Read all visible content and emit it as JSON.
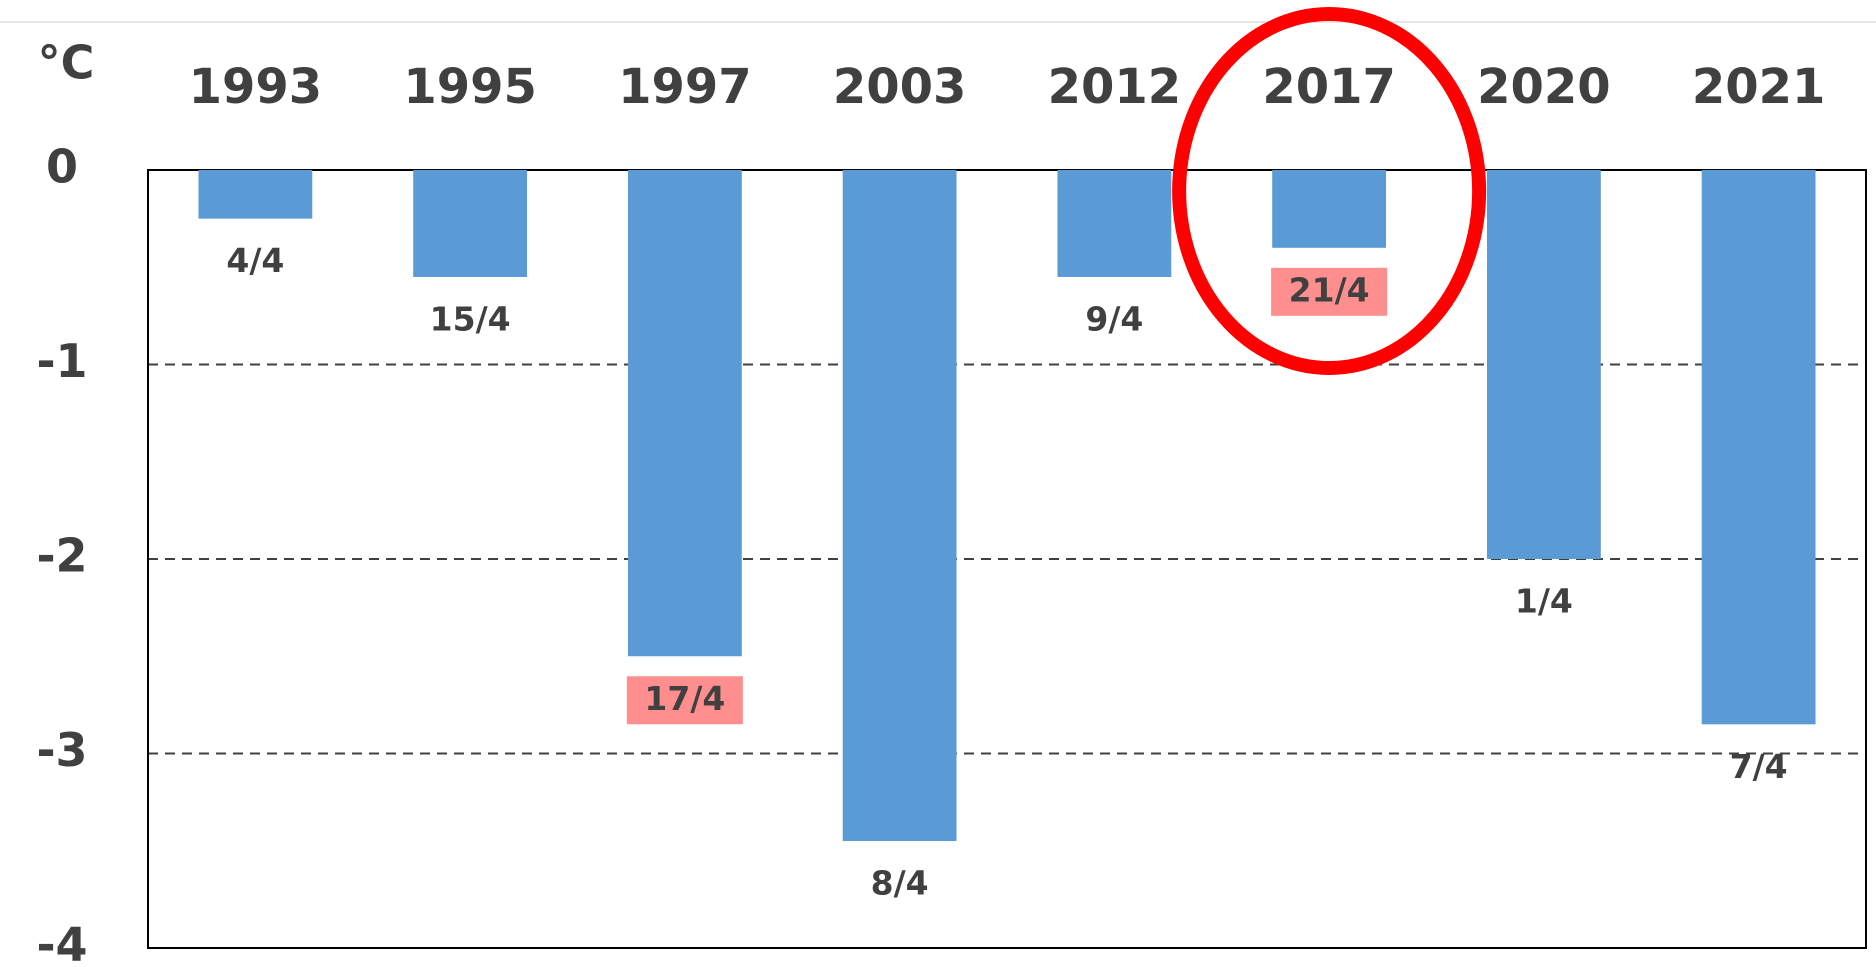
{
  "chart_data": {
    "type": "bar",
    "y_label": "°C",
    "categories": [
      "1993",
      "1995",
      "1997",
      "2003",
      "2012",
      "2017",
      "2020",
      "2021"
    ],
    "values": [
      -0.25,
      -0.55,
      -2.5,
      -3.45,
      -0.55,
      -0.4,
      -2.0,
      -2.85
    ],
    "bar_labels": [
      "4/4",
      "15/4",
      "17/4",
      "8/4",
      "9/4",
      "21/4",
      "1/4",
      "7/4"
    ],
    "label_highlight": [
      false,
      false,
      true,
      false,
      false,
      true,
      false,
      false
    ],
    "circled": [
      false,
      false,
      false,
      false,
      false,
      true,
      false,
      false
    ],
    "color": "#5b9bd5",
    "highlight_color": "#ff8f8f",
    "circle_color": "#ff0000",
    "ylim": [
      -4,
      0
    ],
    "yticks": [
      0,
      -1,
      -2,
      -3,
      -4
    ],
    "grid": true
  }
}
